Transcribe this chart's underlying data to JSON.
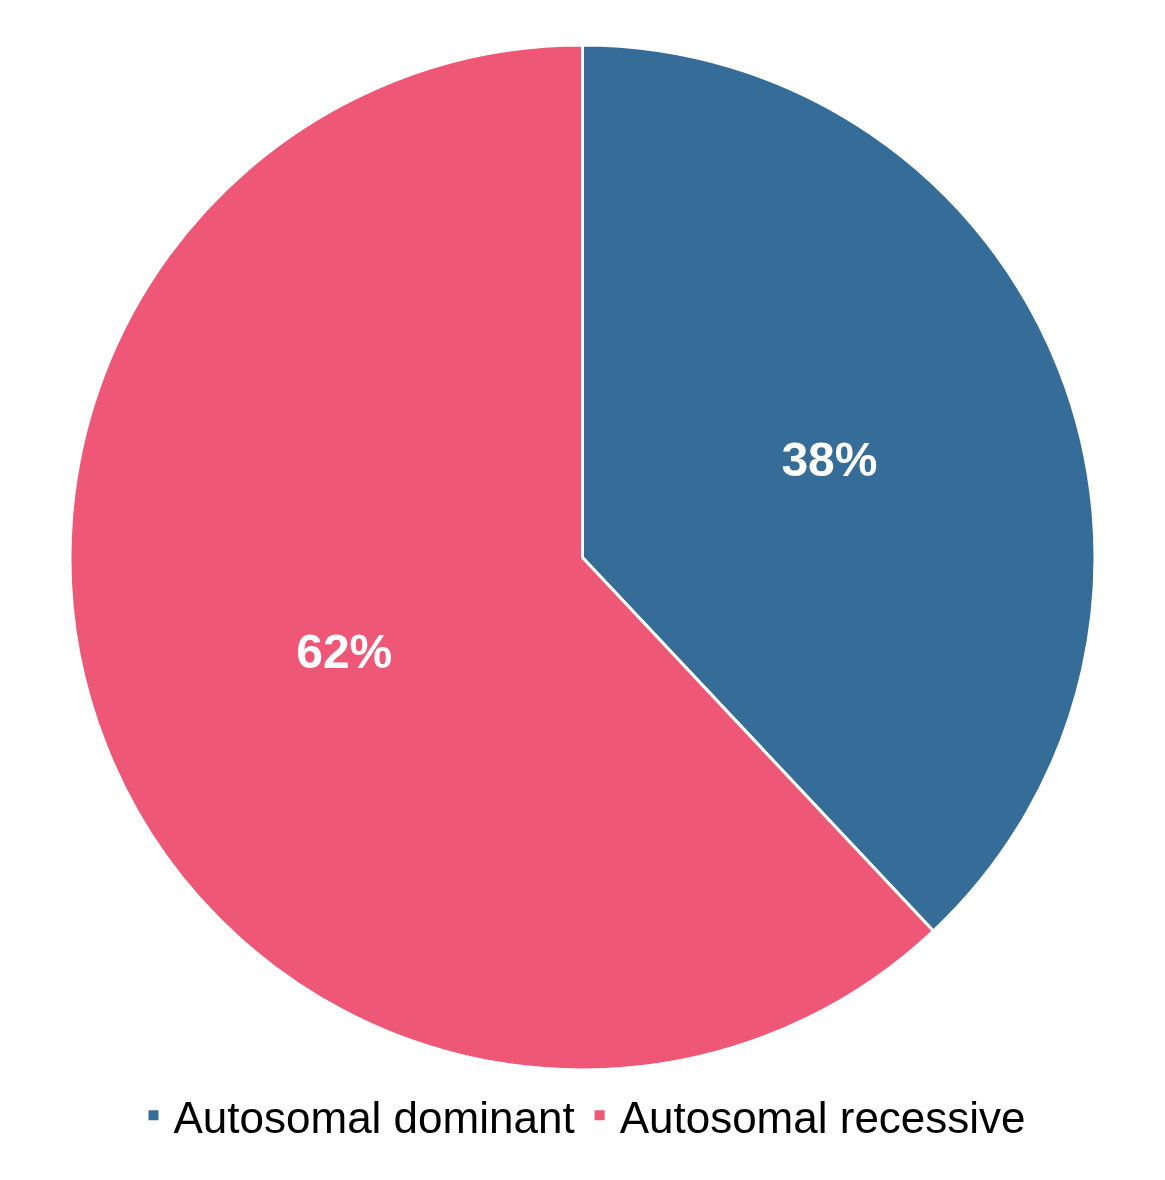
{
  "chart_data": {
    "type": "pie",
    "categories": [
      "Autosomal dominant",
      "Autosomal recessive"
    ],
    "values": [
      38,
      62
    ],
    "colors": [
      "#366d98",
      "#ef5777"
    ],
    "value_labels": [
      "38%",
      "62%"
    ],
    "legend": "bottom"
  }
}
